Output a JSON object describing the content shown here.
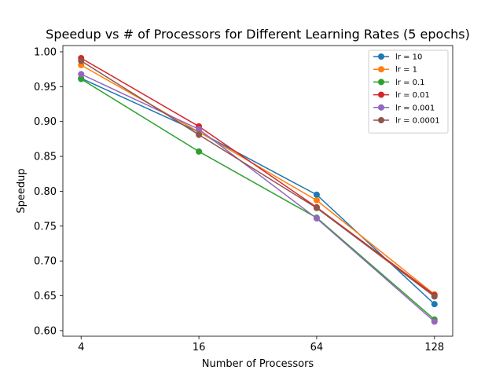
{
  "chart_data": {
    "type": "line",
    "title": "Speedup vs # of Processors for Different Learning Rates (5 epochs)",
    "xlabel": "Number of Processors",
    "ylabel": "Speedup",
    "categories": [
      "4",
      "16",
      "64",
      "128"
    ],
    "ylim": [
      0.592,
      1.009
    ],
    "yticks": [
      0.6,
      0.65,
      0.7,
      0.75,
      0.8,
      0.85,
      0.9,
      0.95,
      1.0
    ],
    "ytick_labels": [
      "0.60",
      "0.65",
      "0.70",
      "0.75",
      "0.80",
      "0.85",
      "0.90",
      "0.95",
      "1.00"
    ],
    "grid": false,
    "legend_position": "top-right",
    "markers": "circle",
    "series": [
      {
        "name": "lr = 10",
        "color": "#1f77b4",
        "values": [
          0.962,
          0.885,
          0.795,
          0.638
        ]
      },
      {
        "name": "lr = 1",
        "color": "#ff7f0e",
        "values": [
          0.981,
          0.885,
          0.787,
          0.652
        ]
      },
      {
        "name": "lr = 0.1",
        "color": "#2ca02c",
        "values": [
          0.961,
          0.857,
          0.762,
          0.616
        ]
      },
      {
        "name": "lr = 0.01",
        "color": "#d62728",
        "values": [
          0.991,
          0.893,
          0.777,
          0.651
        ]
      },
      {
        "name": "lr = 0.001",
        "color": "#9467bd",
        "values": [
          0.968,
          0.889,
          0.761,
          0.613
        ]
      },
      {
        "name": "lr = 0.0001",
        "color": "#8c564b",
        "values": [
          0.987,
          0.881,
          0.776,
          0.649
        ]
      }
    ]
  }
}
